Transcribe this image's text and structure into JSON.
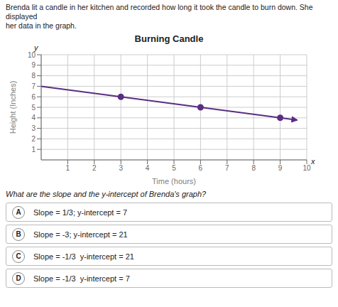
{
  "chart_data": {
    "type": "line",
    "title": "Burning Candle",
    "xlabel": "Time (hours)",
    "ylabel": "Height (Inches)",
    "xlim": [
      0,
      10
    ],
    "ylim": [
      0,
      10
    ],
    "xticks": [
      1,
      2,
      3,
      4,
      5,
      6,
      7,
      8,
      9,
      10
    ],
    "yticks": [
      1,
      2,
      3,
      4,
      5,
      6,
      7,
      8,
      9,
      10
    ],
    "grid": true,
    "series": [
      {
        "type": "line",
        "x": [
          0,
          9,
          9.65
        ],
        "values": [
          7,
          4.0000000003,
          3.783333333655
        ],
        "color": "#5a2d82"
      },
      {
        "type": "scatter",
        "x": [
          3,
          6,
          9
        ],
        "values": [
          6,
          5,
          4
        ],
        "color": "#5a2d82"
      }
    ],
    "header": [
      "Brenda lit a candle in her kitchen and recorded how long it took the candle to burn down. She displayed",
      "her data in the graph."
    ],
    "question": "What are the slope and the y-intercept of Brenda's graph?",
    "answers": [
      {
        "label": "A",
        "text": "Slope = 1/3; y-intercept = 7"
      },
      {
        "label": "B",
        "text": "Slope = -3; y-intercept = 21"
      },
      {
        "label": "C",
        "text": "Slope = -1/3  y-intercept = 21"
      },
      {
        "label": "D",
        "text": "Slope = -1/3  y-intercept = 7"
      }
    ],
    "annotations": [
      "y",
      "x"
    ]
  }
}
